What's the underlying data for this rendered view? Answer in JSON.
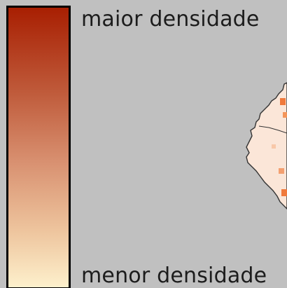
{
  "legend": {
    "max_label": "maior densidade",
    "min_label": "menor densidade",
    "colors": {
      "high": "#a81f02",
      "mid": "#d89070",
      "low": "#fdf0cc"
    }
  },
  "map": {
    "background": "#c0c0c0",
    "region_fill": "#fbe6d8",
    "hotspot_fill": "#f07a3c"
  }
}
